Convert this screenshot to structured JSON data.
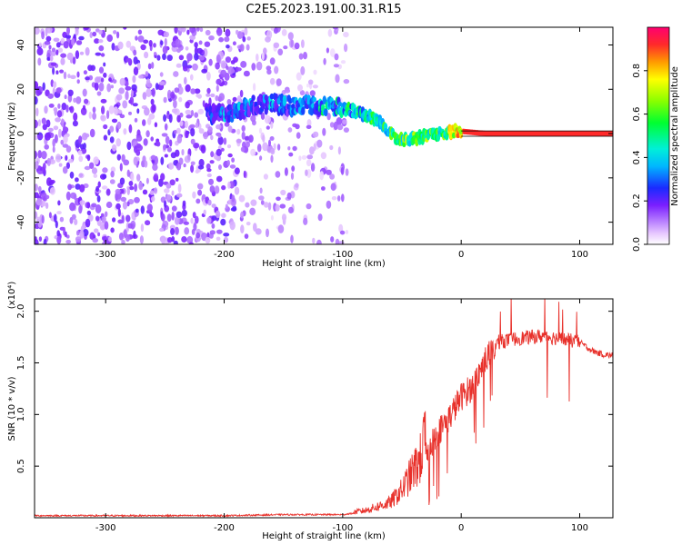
{
  "title": "C2E5.2023.191.00.31.R15",
  "chart_data": [
    {
      "type": "heatmap",
      "xlabel": "Height of straight line (km)",
      "ylabel": "Frequency (Hz)",
      "xlim": [
        -360,
        128
      ],
      "ylim": [
        -50,
        48
      ],
      "xticks": [
        -300,
        -200,
        -100,
        0,
        100
      ],
      "yticks": [
        -40,
        -20,
        0,
        20,
        40
      ],
      "colorbar": {
        "label": "Normalized spectral amplitude",
        "range": [
          0,
          1
        ],
        "ticks": [
          0.0,
          0.2,
          0.4,
          0.6,
          0.8
        ]
      },
      "ridge": {
        "x": [
          -210,
          -190,
          -175,
          -160,
          -150,
          -140,
          -130,
          -120,
          -110,
          -100,
          -90,
          -80,
          -70,
          -60,
          -50,
          -40,
          -30,
          -20,
          -10,
          0,
          20,
          50,
          80,
          100,
          128
        ],
        "y": [
          9,
          10,
          13,
          14,
          13,
          12,
          13,
          12,
          12,
          11,
          10,
          8,
          6,
          0,
          -3,
          -2,
          -1,
          0,
          1,
          1,
          0,
          0,
          0,
          0,
          0
        ]
      }
    },
    {
      "type": "line",
      "xlabel": "Height of straight line (km)",
      "ylabel": "SNR (10 * v/v)",
      "yunit": "(x10⁴)",
      "xlim": [
        -360,
        128
      ],
      "ylim": [
        0,
        2.12
      ],
      "xticks": [
        -300,
        -200,
        -100,
        0,
        100
      ],
      "yticks": [
        0.5,
        1.0,
        1.5,
        2.0
      ],
      "series": [
        {
          "color": "#e8302a",
          "x": [
            -360,
            -300,
            -200,
            -150,
            -100,
            -80,
            -60,
            -50,
            -40,
            -35,
            -30,
            -20,
            -10,
            0,
            10,
            20,
            30,
            40,
            50,
            60,
            70,
            80,
            90,
            100,
            110,
            120,
            128
          ],
          "y": [
            0.02,
            0.02,
            0.02,
            0.03,
            0.03,
            0.06,
            0.12,
            0.22,
            0.38,
            0.45,
            0.65,
            0.85,
            1.0,
            1.2,
            1.3,
            1.55,
            1.7,
            1.72,
            1.74,
            1.75,
            1.76,
            1.74,
            1.72,
            1.7,
            1.62,
            1.58,
            1.57
          ]
        }
      ]
    }
  ]
}
